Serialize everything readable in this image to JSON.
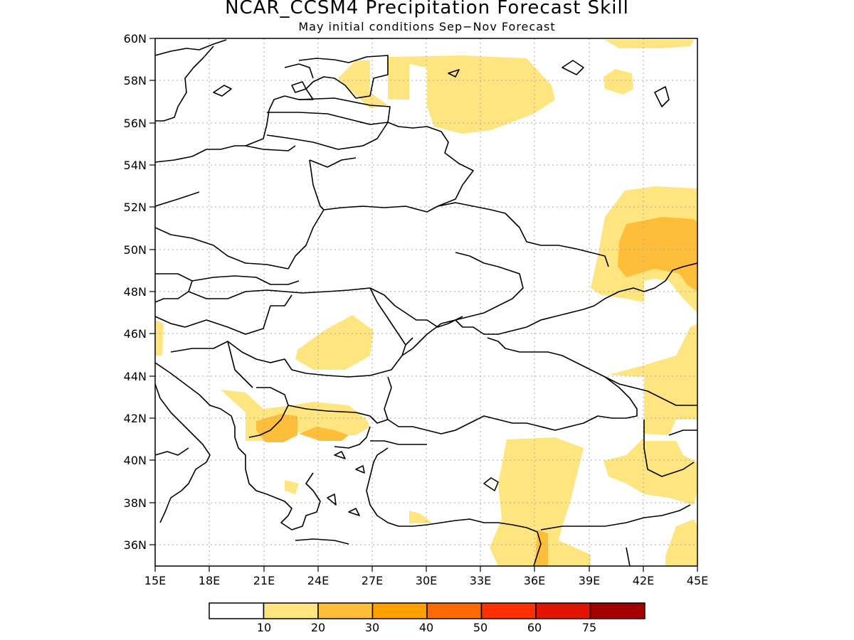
{
  "title": "NCAR_CCSM4 Precipitation Forecast Skill",
  "subtitle": "May initial conditions  Sep−Nov Forecast",
  "map": {
    "lon_range": [
      15,
      45
    ],
    "lat_range": [
      35,
      60
    ],
    "x_ticks": [
      "15E",
      "18E",
      "21E",
      "24E",
      "27E",
      "30E",
      "33E",
      "36E",
      "39E",
      "42E",
      "45E"
    ],
    "y_ticks": [
      "60N",
      "58N",
      "56N",
      "54N",
      "52N",
      "50N",
      "48N",
      "46N",
      "44N",
      "42N",
      "40N",
      "38N",
      "36N"
    ],
    "grid": "dotted"
  },
  "colorbar": {
    "labels": [
      "10",
      "20",
      "30",
      "40",
      "50",
      "60",
      "75"
    ],
    "colors": [
      "#ffffff",
      "#ffe57f",
      "#ffbe3a",
      "#ff9f00",
      "#ff6a00",
      "#ff3000",
      "#e01400",
      "#a30000"
    ]
  }
}
